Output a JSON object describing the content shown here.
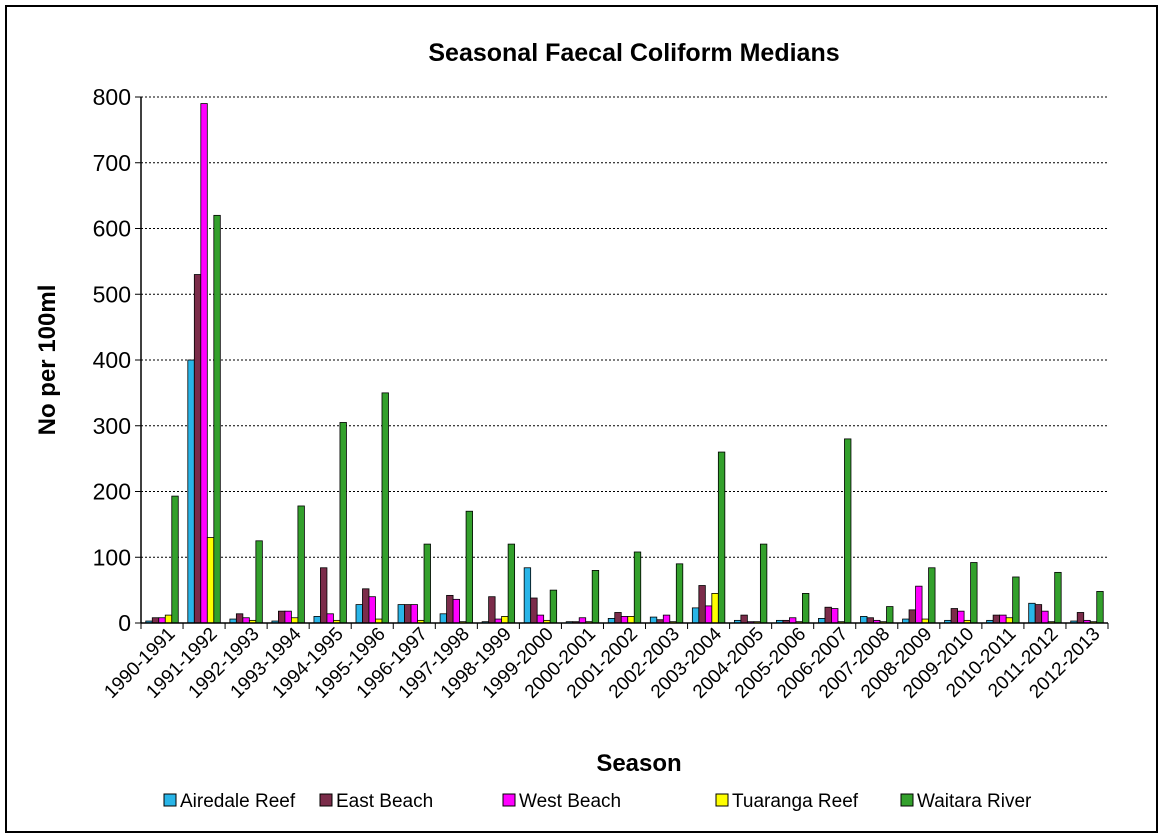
{
  "chart_data": {
    "type": "bar",
    "title": "Seasonal Faecal Coliform Medians",
    "xlabel": "Season",
    "ylabel": "No per 100ml",
    "ylim": [
      0,
      800
    ],
    "yticks": [
      0,
      100,
      200,
      300,
      400,
      500,
      600,
      700,
      800
    ],
    "grid": "horizontal dashed",
    "legend_position": "bottom",
    "categories": [
      "1990-1991",
      "1991-1992",
      "1992-1993",
      "1993-1994",
      "1994-1995",
      "1995-1996",
      "1996-1997",
      "1997-1998",
      "1998-1999",
      "1999-2000",
      "2000-2001",
      "2001-2002",
      "2002-2003",
      "2003-2004",
      "2004-2005",
      "2005-2006",
      "2006-2007",
      "2007-2008",
      "2008-2009",
      "2009-2010",
      "2010-2011",
      "2011-2012",
      "2012-2013"
    ],
    "series": [
      {
        "name": "Airedale Reef",
        "color": "#29b5e8",
        "values": [
          3,
          400,
          6,
          3,
          10,
          28,
          28,
          14,
          2,
          84,
          2,
          7,
          9,
          23,
          4,
          4,
          7,
          10,
          6,
          4,
          4,
          30,
          3
        ]
      },
      {
        "name": "East Beach",
        "color": "#7b2c4a",
        "values": [
          8,
          530,
          14,
          18,
          84,
          52,
          28,
          42,
          40,
          38,
          2,
          16,
          5,
          57,
          12,
          4,
          24,
          8,
          20,
          22,
          12,
          28,
          16
        ]
      },
      {
        "name": "West Beach",
        "color": "#ff00ff",
        "values": [
          8,
          790,
          8,
          18,
          14,
          40,
          28,
          36,
          6,
          12,
          8,
          10,
          12,
          26,
          2,
          8,
          22,
          4,
          56,
          18,
          12,
          18,
          4
        ]
      },
      {
        "name": "Tuaranga Reef",
        "color": "#ffff00",
        "values": [
          12,
          130,
          4,
          8,
          4,
          6,
          4,
          2,
          10,
          4,
          2,
          10,
          2,
          45,
          2,
          2,
          2,
          2,
          6,
          4,
          8,
          2,
          2
        ]
      },
      {
        "name": "Waitara River",
        "color": "#33a02c",
        "values": [
          193,
          620,
          125,
          178,
          305,
          350,
          120,
          170,
          120,
          50,
          80,
          108,
          90,
          260,
          120,
          45,
          280,
          25,
          84,
          92,
          70,
          77,
          48
        ]
      }
    ]
  }
}
